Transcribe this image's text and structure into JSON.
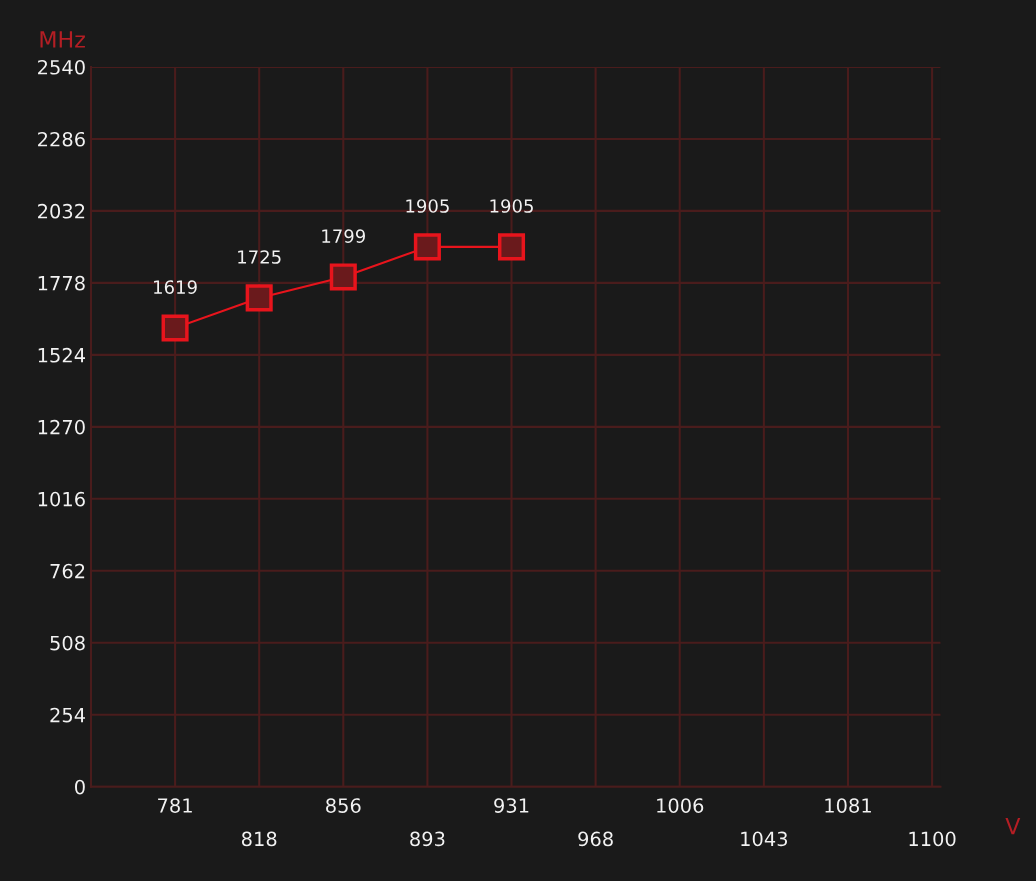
{
  "chart_data": {
    "type": "line",
    "xlabel": "V",
    "ylabel": "MHz",
    "categories": [
      "781",
      "818",
      "856",
      "893",
      "931",
      "968",
      "1006",
      "1043",
      "1081",
      "1100"
    ],
    "series": [
      {
        "color": "#e8141c",
        "values": [
          1619,
          1725,
          1799,
          1905,
          1905,
          null,
          null,
          null,
          null,
          null
        ]
      }
    ],
    "ylim": [
      0,
      2540
    ],
    "yticks": [
      0,
      254,
      508,
      762,
      1016,
      1270,
      1524,
      1778,
      2032,
      2286,
      2540
    ],
    "grid": true,
    "marker": "square",
    "line_style": "solid",
    "data_labels": true
  }
}
